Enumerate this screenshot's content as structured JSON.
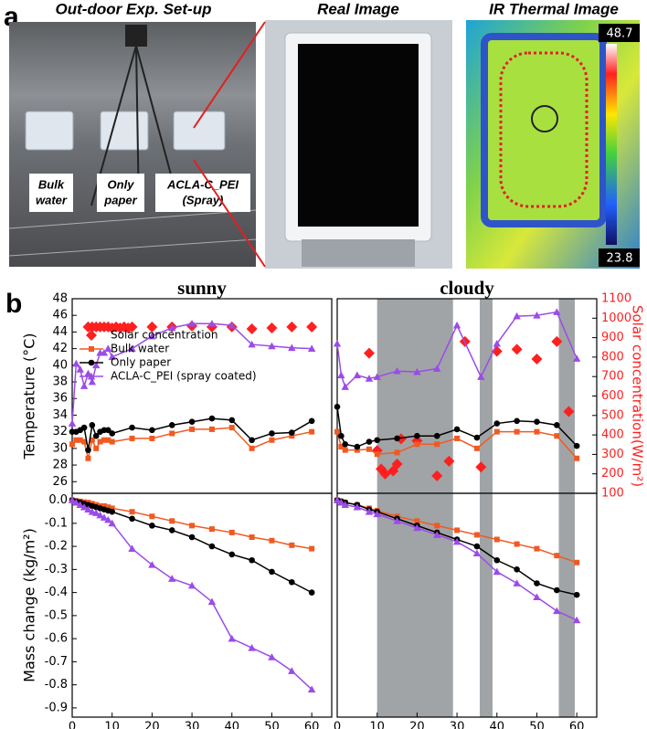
{
  "panel_a": {
    "label": "a",
    "photos": [
      {
        "title": "Out-door Exp. Set-up",
        "captions": [
          [
            "Bulk",
            "water"
          ],
          [
            "Only",
            "paper"
          ],
          [
            "ACLA-C_PEI",
            "(Spray)"
          ]
        ]
      },
      {
        "title": "Real Image"
      },
      {
        "title": "IR Thermal Image",
        "scale_max": "48.7",
        "scale_min": "23.8"
      }
    ]
  },
  "panel_b_label": "b",
  "chart_data": [
    {
      "type": "line",
      "title": "sunny",
      "ylabel": "Temperature (°C)",
      "legend": "upper left",
      "xlim": [
        0,
        65
      ],
      "ylim": [
        24.6,
        48
      ],
      "yticks": [
        26,
        28,
        30,
        32,
        34,
        36,
        38,
        40,
        42,
        44,
        46,
        48
      ],
      "y2lim": [
        100,
        1100
      ],
      "series": [
        {
          "name": "Solar concentration",
          "color": "#ff1f1f",
          "marker": "diamond",
          "line": false,
          "axis": "y2",
          "x": [
            4,
            5,
            6,
            7,
            8,
            9,
            10,
            11,
            12,
            13,
            14,
            15,
            20,
            25,
            30,
            35,
            40,
            45,
            50,
            55,
            60
          ],
          "values": [
            955,
            955,
            955,
            955,
            955,
            955,
            950,
            955,
            950,
            955,
            950,
            955,
            955,
            955,
            960,
            955,
            955,
            945,
            950,
            955,
            955
          ]
        },
        {
          "name": "Bulk water",
          "color": "#f05a22",
          "marker": "square",
          "x": [
            0,
            1,
            2,
            3,
            4,
            5,
            6,
            7,
            8,
            9,
            10,
            15,
            20,
            25,
            30,
            35,
            40,
            45,
            50,
            55,
            60
          ],
          "values": [
            30.5,
            31,
            31,
            30.8,
            28.8,
            31,
            30,
            30.8,
            31,
            31,
            30.8,
            31.2,
            31.2,
            31.8,
            32.3,
            32.3,
            32.5,
            30,
            31,
            31.5,
            32
          ]
        },
        {
          "name": "Only paper",
          "color": "#000000",
          "marker": "circle",
          "x": [
            0,
            1,
            2,
            3,
            4,
            5,
            6,
            7,
            8,
            9,
            10,
            15,
            20,
            25,
            30,
            35,
            40,
            45,
            50,
            55,
            60
          ],
          "values": [
            32,
            32,
            32.2,
            32.5,
            29.8,
            32.8,
            31.5,
            32,
            32.2,
            32.2,
            31.8,
            32.5,
            32.2,
            32.8,
            33.2,
            33.6,
            33.4,
            31,
            31.8,
            31.9,
            33.3
          ]
        },
        {
          "name": "ACLA-C_PEI (spray coated)",
          "color": "#9b4be8",
          "marker": "triangle",
          "x": [
            0,
            1,
            2,
            3,
            4,
            5,
            6,
            7,
            8,
            9,
            10,
            15,
            20,
            25,
            30,
            35,
            40,
            45,
            50,
            55,
            60
          ],
          "values": [
            33,
            40.2,
            39.5,
            37.5,
            39,
            38,
            40,
            41.5,
            41.5,
            42,
            41,
            42,
            43.5,
            44.5,
            45,
            45,
            44.8,
            42.5,
            42.3,
            42.1,
            42
          ]
        }
      ]
    },
    {
      "type": "line",
      "title": "cloudy",
      "y2label": "Solar concentration(W/m²)",
      "xlim": [
        0,
        65
      ],
      "ylim": [
        24.6,
        48
      ],
      "y2lim": [
        100,
        1100
      ],
      "y2ticks": [
        100,
        200,
        300,
        400,
        500,
        600,
        700,
        800,
        900,
        1000,
        1100
      ],
      "shaded": [
        [
          10,
          29
        ],
        [
          35.7,
          38.9
        ],
        [
          55.5,
          59.5
        ]
      ],
      "shade_color": "#a0a4a6",
      "series": [
        {
          "name": "Solar concentration",
          "color": "#ff1f1f",
          "marker": "diamond",
          "line": false,
          "axis": "y2",
          "x": [
            8,
            10,
            11,
            12,
            14,
            15,
            16,
            20,
            25,
            28,
            32,
            36,
            40,
            45,
            50,
            55,
            58
          ],
          "values": [
            820,
            320,
            225,
            200,
            215,
            250,
            380,
            370,
            190,
            265,
            880,
            235,
            830,
            840,
            790,
            880,
            520
          ]
        },
        {
          "name": "Bulk water",
          "color": "#f05a22",
          "marker": "square",
          "x": [
            0,
            1,
            2,
            5,
            8,
            10,
            15,
            20,
            25,
            30,
            35,
            40,
            45,
            50,
            55,
            60
          ],
          "values": [
            32,
            30.2,
            29.8,
            29.8,
            29.9,
            29.3,
            29.5,
            30.5,
            30.5,
            31.2,
            30,
            32,
            32,
            32,
            31.5,
            28.8
          ]
        },
        {
          "name": "Only paper",
          "color": "#000000",
          "marker": "circle",
          "x": [
            0,
            1,
            2,
            5,
            8,
            10,
            15,
            20,
            25,
            30,
            35,
            40,
            45,
            50,
            55,
            60
          ],
          "values": [
            35,
            31.5,
            30.5,
            30.2,
            30.8,
            31,
            31.2,
            31.5,
            31.5,
            32.3,
            31.3,
            33,
            33.3,
            33.2,
            32.8,
            30.3
          ]
        },
        {
          "name": "ACLA-C_PEI (spray coated)",
          "color": "#9b4be8",
          "marker": "triangle",
          "x": [
            0,
            1,
            2,
            5,
            8,
            10,
            15,
            20,
            25,
            30,
            36,
            40,
            45,
            50,
            55,
            60
          ],
          "values": [
            42.6,
            38.8,
            37.4,
            38.8,
            38.4,
            38.6,
            39.3,
            39.2,
            39.6,
            44.8,
            38.6,
            42.6,
            45.9,
            46,
            46.4,
            40.8
          ]
        }
      ]
    },
    {
      "type": "line",
      "ylabel": "Mass change (kg/m²)",
      "xlabel": "Time (min)",
      "xlim": [
        0,
        65
      ],
      "xticks": [
        0,
        10,
        20,
        30,
        40,
        50,
        60
      ],
      "ylim": [
        -0.94,
        0.03
      ],
      "yticks": [
        {
          "value": 0,
          "label": "0.0"
        },
        -0.1,
        -0.2,
        -0.3,
        -0.4,
        -0.5,
        -0.6,
        -0.7,
        -0.8,
        -0.9
      ],
      "series": [
        {
          "name": "Bulk water",
          "color": "#f05a22",
          "marker": "square",
          "x": [
            0,
            1,
            2,
            3,
            4,
            5,
            6,
            7,
            8,
            9,
            10,
            15,
            20,
            25,
            30,
            35,
            40,
            45,
            50,
            55,
            60
          ],
          "values": [
            0,
            -0.003,
            -0.005,
            -0.008,
            -0.01,
            -0.015,
            -0.02,
            -0.025,
            -0.025,
            -0.03,
            -0.035,
            -0.05,
            -0.07,
            -0.09,
            -0.11,
            -0.125,
            -0.14,
            -0.16,
            -0.175,
            -0.195,
            -0.21
          ]
        },
        {
          "name": "Only paper",
          "color": "#000000",
          "marker": "circle",
          "x": [
            0,
            1,
            2,
            3,
            4,
            5,
            6,
            7,
            8,
            9,
            10,
            15,
            20,
            25,
            30,
            35,
            40,
            45,
            50,
            55,
            60
          ],
          "values": [
            0,
            -0.005,
            -0.01,
            -0.015,
            -0.02,
            -0.025,
            -0.03,
            -0.035,
            -0.04,
            -0.045,
            -0.05,
            -0.08,
            -0.11,
            -0.13,
            -0.16,
            -0.2,
            -0.235,
            -0.26,
            -0.31,
            -0.355,
            -0.4
          ]
        },
        {
          "name": "ACLA-C_PEI (spray coated)",
          "color": "#9b4be8",
          "marker": "triangle",
          "x": [
            0,
            1,
            2,
            3,
            4,
            5,
            6,
            7,
            8,
            9,
            10,
            15,
            20,
            25,
            30,
            35,
            40,
            45,
            50,
            55,
            60
          ],
          "values": [
            0,
            -0.01,
            -0.02,
            -0.03,
            -0.04,
            -0.05,
            -0.055,
            -0.065,
            -0.075,
            -0.085,
            -0.1,
            -0.21,
            -0.28,
            -0.34,
            -0.37,
            -0.44,
            -0.6,
            -0.64,
            -0.68,
            -0.74,
            -0.82
          ]
        }
      ]
    },
    {
      "type": "line",
      "xlabel": "Time (min)",
      "xlim": [
        0,
        65
      ],
      "xticks": [
        0,
        10,
        20,
        30,
        40,
        50,
        60
      ],
      "ylim": [
        -0.94,
        0.03
      ],
      "shaded": [
        [
          10,
          29
        ],
        [
          35.7,
          38.9
        ],
        [
          55.5,
          59.5
        ]
      ],
      "shade_color": "#a0a4a6",
      "series": [
        {
          "name": "Bulk water",
          "color": "#f05a22",
          "marker": "square",
          "x": [
            0,
            1,
            2,
            5,
            8,
            10,
            15,
            20,
            25,
            30,
            35,
            40,
            45,
            50,
            55,
            60
          ],
          "values": [
            0,
            -0.005,
            -0.01,
            -0.02,
            -0.035,
            -0.045,
            -0.07,
            -0.09,
            -0.11,
            -0.13,
            -0.15,
            -0.17,
            -0.19,
            -0.21,
            -0.24,
            -0.27
          ]
        },
        {
          "name": "Only paper",
          "color": "#000000",
          "marker": "circle",
          "x": [
            0,
            1,
            2,
            5,
            8,
            10,
            15,
            20,
            25,
            30,
            35,
            40,
            45,
            50,
            55,
            60
          ],
          "values": [
            0,
            -0.005,
            -0.01,
            -0.02,
            -0.04,
            -0.05,
            -0.08,
            -0.11,
            -0.14,
            -0.17,
            -0.2,
            -0.26,
            -0.3,
            -0.36,
            -0.39,
            -0.41
          ]
        },
        {
          "name": "ACLA-C_PEI (spray coated)",
          "color": "#9b4be8",
          "marker": "triangle",
          "x": [
            0,
            1,
            2,
            5,
            8,
            10,
            15,
            20,
            25,
            30,
            35,
            40,
            45,
            50,
            55,
            60
          ],
          "values": [
            0,
            -0.01,
            -0.02,
            -0.03,
            -0.05,
            -0.06,
            -0.09,
            -0.12,
            -0.15,
            -0.18,
            -0.23,
            -0.31,
            -0.36,
            -0.42,
            -0.48,
            -0.52
          ]
        }
      ]
    }
  ]
}
